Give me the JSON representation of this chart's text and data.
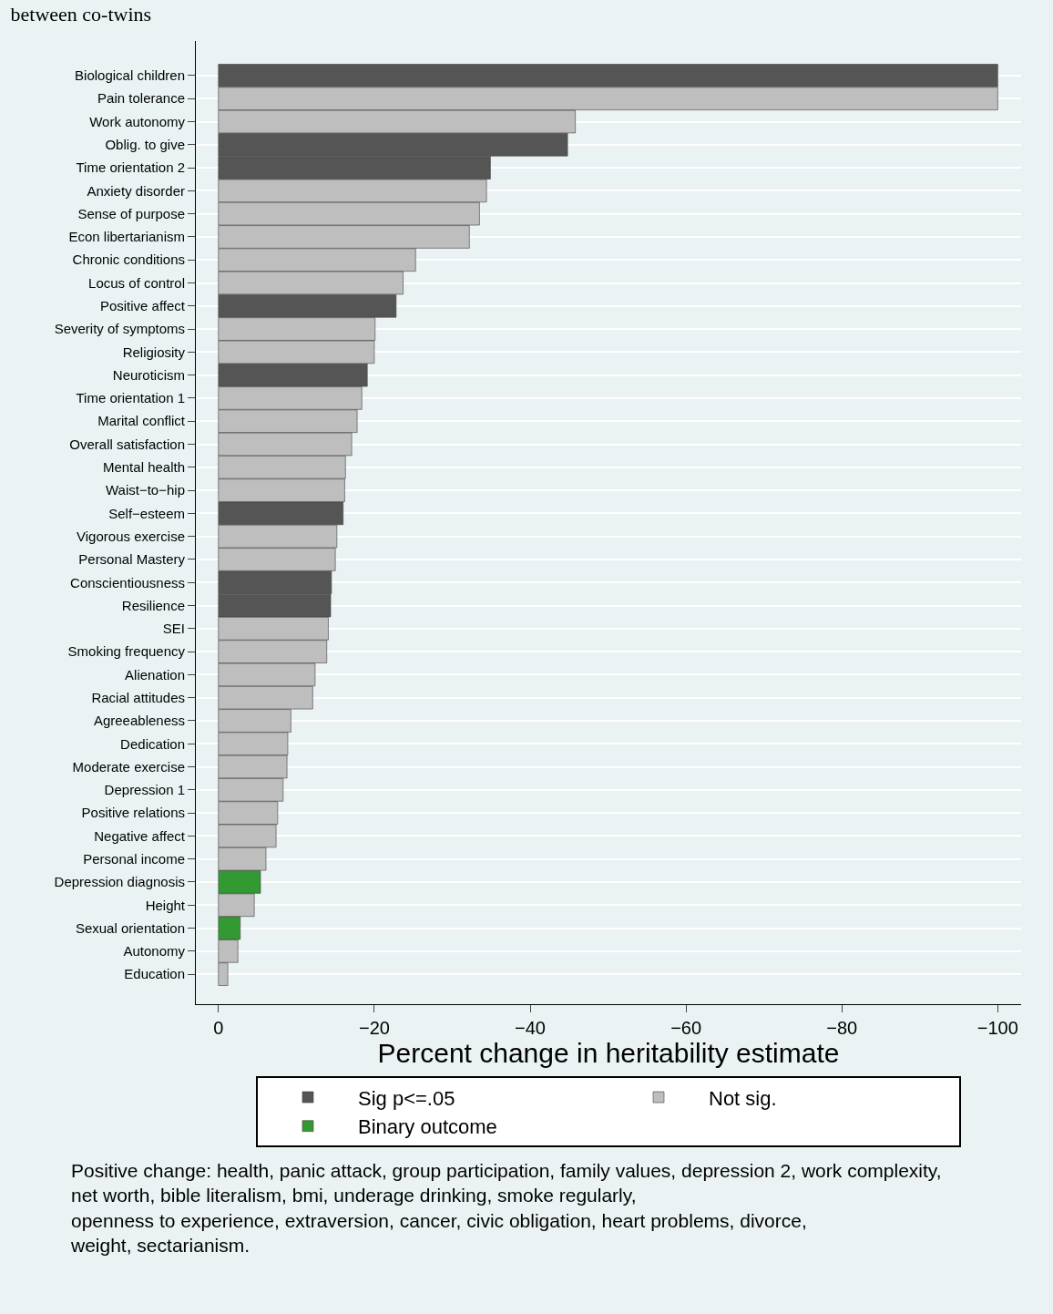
{
  "chart_data": {
    "type": "bar",
    "orientation": "horizontal",
    "title": "between co-twins",
    "xlabel": "Percent change in heritability estimate",
    "categories": [
      "Biological children",
      "Pain tolerance",
      "Work autonomy",
      "Oblig. to give",
      "Time orientation 2",
      "Anxiety disorder",
      "Sense of purpose",
      "Econ libertarianism",
      "Chronic conditions",
      "Locus of control",
      "Positive affect",
      "Severity of symptoms",
      "Religiosity",
      "Neuroticism",
      "Time orientation 1",
      "Marital conflict",
      "Overall satisfaction",
      "Mental health",
      "Waist−to−hip",
      "Self−esteem",
      "Vigorous exercise",
      "Personal Mastery",
      "Conscientiousness",
      "Resilience",
      "SEI",
      "Smoking frequency",
      "Alienation",
      "Racial attitudes",
      "Agreeableness",
      "Dedication",
      "Moderate exercise",
      "Depression 1",
      "Positive relations",
      "Negative affect",
      "Personal income",
      "Depression diagnosis",
      "Height",
      "Sexual orientation",
      "Autonomy",
      "Education"
    ],
    "series": [
      {
        "name": "Sig p<=.05",
        "color": "#555555",
        "values": [
          -100,
          null,
          null,
          -44.8,
          -34.9,
          null,
          null,
          null,
          null,
          null,
          -22.8,
          null,
          null,
          -19.1,
          null,
          null,
          null,
          null,
          null,
          -16.0,
          null,
          null,
          -14.5,
          -14.4,
          null,
          null,
          null,
          null,
          null,
          null,
          null,
          null,
          null,
          null,
          null,
          null,
          null,
          null,
          null,
          null
        ]
      },
      {
        "name": "Not sig.",
        "color": "#bebebe",
        "values": [
          null,
          -100,
          -45.8,
          null,
          null,
          -34.4,
          -33.5,
          -32.2,
          -25.3,
          -23.7,
          null,
          -20.1,
          -20.0,
          null,
          -18.4,
          -17.8,
          -17.1,
          -16.3,
          -16.2,
          null,
          -15.2,
          -15.0,
          null,
          null,
          -14.1,
          -13.9,
          -12.4,
          -12.1,
          -9.3,
          -8.9,
          -8.8,
          -8.3,
          -7.6,
          -7.4,
          -6.1,
          null,
          -4.6,
          null,
          -2.5,
          -1.2
        ]
      },
      {
        "name": "Binary outcome",
        "color": "#339933",
        "values": [
          null,
          null,
          null,
          null,
          null,
          null,
          null,
          null,
          null,
          null,
          null,
          null,
          null,
          null,
          null,
          null,
          null,
          null,
          null,
          null,
          null,
          null,
          null,
          null,
          null,
          null,
          null,
          null,
          null,
          null,
          null,
          null,
          null,
          null,
          null,
          -5.4,
          null,
          -2.8,
          null,
          null
        ]
      }
    ],
    "xlim": [
      2.9,
      -103
    ],
    "xticks": [
      0,
      {
        "value": -20,
        "label": "−20"
      },
      {
        "value": -40,
        "label": "−40"
      },
      {
        "value": -60,
        "label": "−60"
      },
      {
        "value": -80,
        "label": "−80"
      },
      {
        "value": -100,
        "label": "−100"
      }
    ],
    "grid": "y",
    "legend": "bottom",
    "annotations": [
      "Positive change: health, panic attack, group participation, family values, depression 2, work complexity,\nnet worth, bible literalism, bmi, underage drinking, smoke regularly,\nopenness to experience, extraversion, cancer, civic obligation, heart problems, divorce,\nweight, sectarianism."
    ]
  }
}
